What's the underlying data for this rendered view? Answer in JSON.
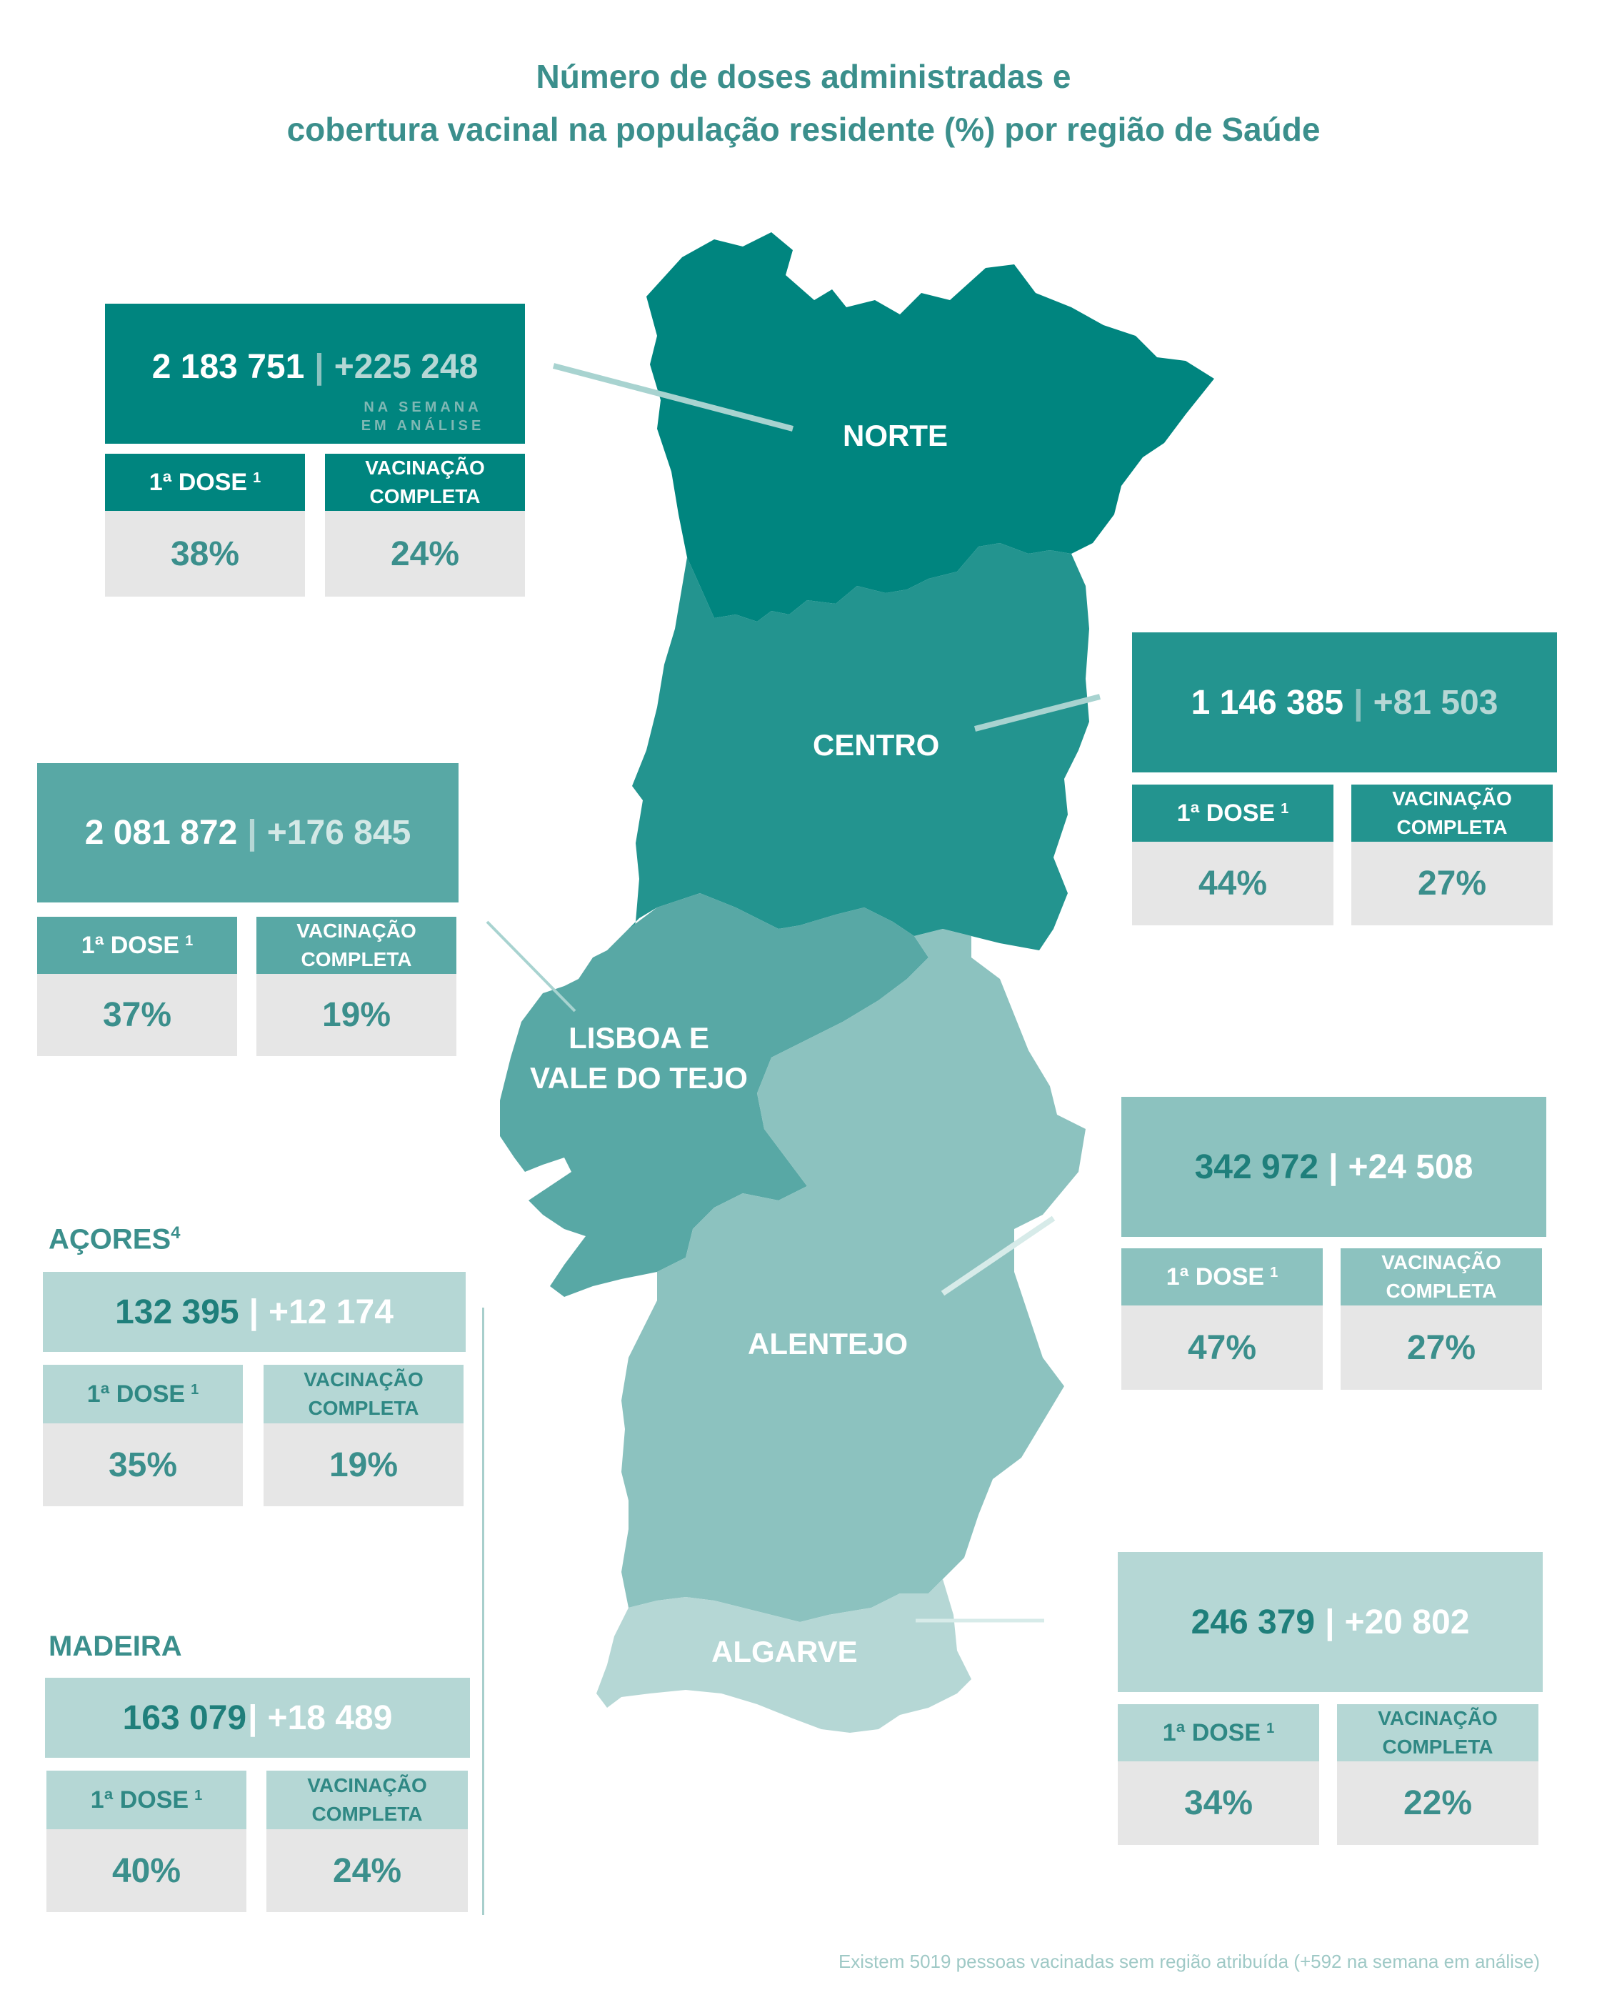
{
  "title_line1": "Número de doses administradas e",
  "title_line2": "cobertura vacinal na população residente (%) por região de Saúde",
  "labels": {
    "dose": "1ª DOSE",
    "dose_note": "1",
    "full_line1": "VACINAÇÃO",
    "full_line2": "COMPLETA",
    "separator": "|",
    "weekly_line1": "NA SEMANA",
    "weekly_line2": "EM ANÁLISE"
  },
  "regions": {
    "norte": {
      "name": "NORTE",
      "total": "2 183 751",
      "weekly": "+225 248",
      "dose1": "38%",
      "complete": "24%"
    },
    "centro": {
      "name": "CENTRO",
      "total": "1 146 385",
      "weekly": "+81 503",
      "dose1": "44%",
      "complete": "27%"
    },
    "lvt": {
      "name_line1": "LISBOA E",
      "name_line2": "VALE DO TEJO",
      "total": "2 081 872",
      "weekly": "+176 845",
      "dose1": "37%",
      "complete": "19%"
    },
    "alentejo": {
      "name": "ALENTEJO",
      "total": "342 972",
      "weekly": "+24 508",
      "dose1": "47%",
      "complete": "27%"
    },
    "algarve": {
      "name": "ALGARVE",
      "total": "246 379",
      "weekly": "+20 802",
      "dose1": "34%",
      "complete": "22%"
    },
    "acores": {
      "name": "AÇORES",
      "name_note": "4",
      "total": "132 395",
      "weekly": "+12 174",
      "dose1": "35%",
      "complete": "19%"
    },
    "madeira": {
      "name": "MADEIRA",
      "total": "163 079",
      "weekly": "+18 489",
      "dose1": "40%",
      "complete": "24%"
    }
  },
  "footnote": "Existem 5019 pessoas vacinadas sem região atribuída (+592 na semana em análise)",
  "colors": {
    "norte": "#00857f",
    "centro": "#23948f",
    "lvt": "#58a8a5",
    "alentejo": "#8cc2bf",
    "algarve": "#b5d7d5",
    "title": "#3b8f8c",
    "value_bg": "#e6e6e6"
  }
}
